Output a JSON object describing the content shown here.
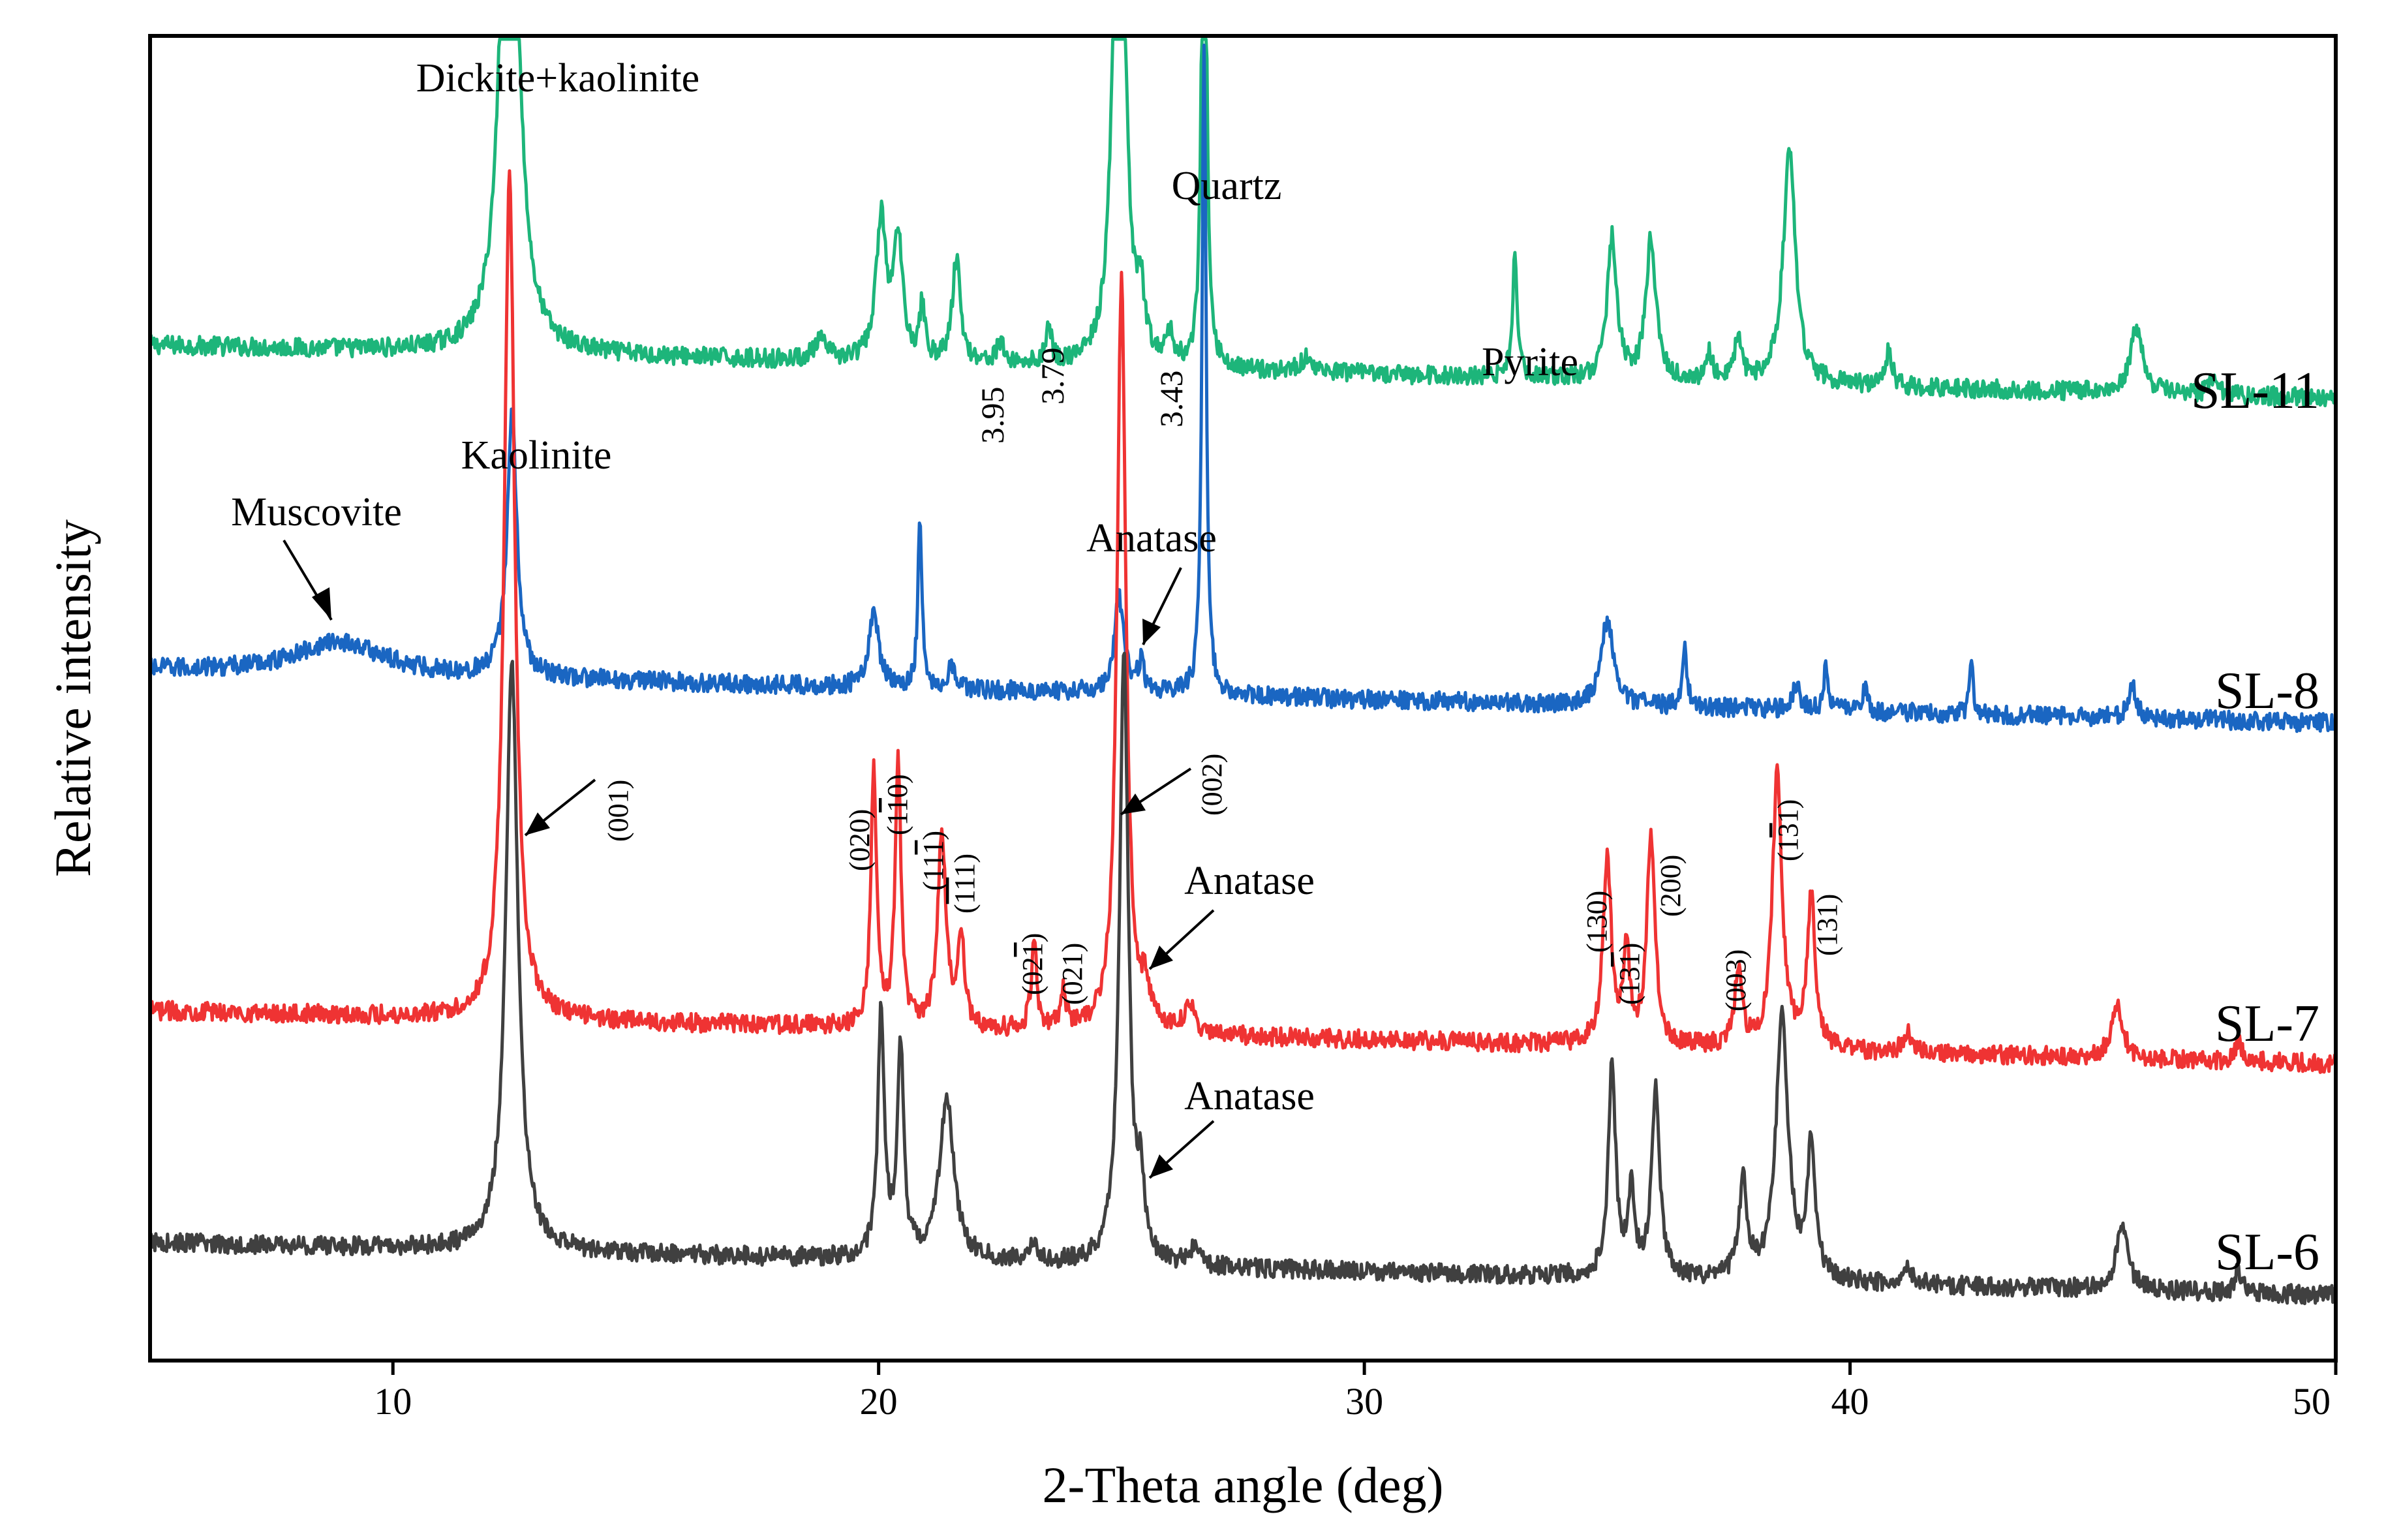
{
  "chart_data": {
    "type": "line",
    "xlabel": "2-Theta angle (deg)",
    "ylabel": "Relative intensity",
    "xlim": [
      5,
      50
    ],
    "x_ticks": [
      10,
      20,
      30,
      40,
      50
    ],
    "grid": false,
    "legend": "none",
    "series": [
      {
        "name": "SL-11",
        "color": "#1db57a",
        "baseline": 60,
        "noise": 2.0,
        "peaks": [
          {
            "x": 12.4,
            "h": 160,
            "w": 0.18
          },
          {
            "x": 18.8,
            "h": 4,
            "w": 0.15
          },
          {
            "x": 20.05,
            "h": 30,
            "w": 0.12
          },
          {
            "x": 20.4,
            "h": 25,
            "w": 0.12
          },
          {
            "x": 20.9,
            "h": 12,
            "w": 0.06
          },
          {
            "x": 21.6,
            "h": 22,
            "w": 0.1
          },
          {
            "x": 22.5,
            "h": 4,
            "w": 0.1
          },
          {
            "x": 23.5,
            "h": 9,
            "w": 0.06
          },
          {
            "x": 24.95,
            "h": 160,
            "w": 0.12
          },
          {
            "x": 25.4,
            "h": 12,
            "w": 0.08
          },
          {
            "x": 26.0,
            "h": 6,
            "w": 0.08
          },
          {
            "x": 26.7,
            "h": 155,
            "w": 0.05
          },
          {
            "x": 28.8,
            "h": 3,
            "w": 0.15
          },
          {
            "x": 33.1,
            "h": 26,
            "w": 0.06
          },
          {
            "x": 35.1,
            "h": 30,
            "w": 0.12
          },
          {
            "x": 35.9,
            "h": 30,
            "w": 0.12
          },
          {
            "x": 37.1,
            "h": 6,
            "w": 0.08
          },
          {
            "x": 37.7,
            "h": 10,
            "w": 0.08
          },
          {
            "x": 38.75,
            "h": 50,
            "w": 0.15
          },
          {
            "x": 40.8,
            "h": 8,
            "w": 0.08
          },
          {
            "x": 45.9,
            "h": 14,
            "w": 0.15
          },
          {
            "x": 47.5,
            "h": 4,
            "w": 0.1
          }
        ]
      },
      {
        "name": "SL-8",
        "color": "#1a66c2",
        "baseline": 40,
        "noise": 2.0,
        "peaks": [
          {
            "x": 8.9,
            "h": 7,
            "w": 1.1
          },
          {
            "x": 12.45,
            "h": 56,
            "w": 0.12
          },
          {
            "x": 19.9,
            "h": 16,
            "w": 0.12
          },
          {
            "x": 20.85,
            "h": 36,
            "w": 0.05
          },
          {
            "x": 21.5,
            "h": 5,
            "w": 0.1
          },
          {
            "x": 24.95,
            "h": 20,
            "w": 0.12
          },
          {
            "x": 25.4,
            "h": 6,
            "w": 0.08
          },
          {
            "x": 26.7,
            "h": 140,
            "w": 0.05
          },
          {
            "x": 35.0,
            "h": 18,
            "w": 0.15
          },
          {
            "x": 36.6,
            "h": 12,
            "w": 0.06
          },
          {
            "x": 38.9,
            "h": 5,
            "w": 0.1
          },
          {
            "x": 39.5,
            "h": 10,
            "w": 0.05
          },
          {
            "x": 40.3,
            "h": 5,
            "w": 0.06
          },
          {
            "x": 42.5,
            "h": 10,
            "w": 0.05
          },
          {
            "x": 45.8,
            "h": 7,
            "w": 0.1
          }
        ]
      },
      {
        "name": "SL-7",
        "color": "#ef3333",
        "baseline": 35,
        "noise": 2.0,
        "peaks": [
          {
            "x": 12.4,
            "h": 180,
            "w": 0.13
          },
          {
            "x": 19.9,
            "h": 55,
            "w": 0.07
          },
          {
            "x": 20.4,
            "h": 58,
            "w": 0.07
          },
          {
            "x": 21.3,
            "h": 42,
            "w": 0.1
          },
          {
            "x": 21.7,
            "h": 20,
            "w": 0.08
          },
          {
            "x": 23.2,
            "h": 18,
            "w": 0.07
          },
          {
            "x": 23.8,
            "h": 8,
            "w": 0.07
          },
          {
            "x": 25.0,
            "h": 160,
            "w": 0.11
          },
          {
            "x": 25.5,
            "h": 8,
            "w": 0.1
          },
          {
            "x": 26.4,
            "h": 6,
            "w": 0.12
          },
          {
            "x": 35.0,
            "h": 40,
            "w": 0.1
          },
          {
            "x": 35.4,
            "h": 21,
            "w": 0.07
          },
          {
            "x": 35.9,
            "h": 45,
            "w": 0.1
          },
          {
            "x": 37.7,
            "h": 16,
            "w": 0.09
          },
          {
            "x": 38.5,
            "h": 58,
            "w": 0.12
          },
          {
            "x": 39.2,
            "h": 32,
            "w": 0.1
          },
          {
            "x": 41.2,
            "h": 4,
            "w": 0.12
          },
          {
            "x": 45.5,
            "h": 11,
            "w": 0.14
          },
          {
            "x": 48.0,
            "h": 4,
            "w": 0.08
          }
        ]
      },
      {
        "name": "SL-6",
        "color": "#404040",
        "baseline": 5,
        "noise": 2.0,
        "peaks": [
          {
            "x": 12.45,
            "h": 125,
            "w": 0.15
          },
          {
            "x": 20.05,
            "h": 52,
            "w": 0.08
          },
          {
            "x": 20.45,
            "h": 45,
            "w": 0.08
          },
          {
            "x": 21.4,
            "h": 34,
            "w": 0.18
          },
          {
            "x": 23.2,
            "h": 4,
            "w": 0.1
          },
          {
            "x": 25.05,
            "h": 130,
            "w": 0.11
          },
          {
            "x": 25.4,
            "h": 15,
            "w": 0.08
          },
          {
            "x": 26.5,
            "h": 4,
            "w": 0.12
          },
          {
            "x": 35.1,
            "h": 45,
            "w": 0.09
          },
          {
            "x": 35.5,
            "h": 18,
            "w": 0.08
          },
          {
            "x": 36.0,
            "h": 40,
            "w": 0.1
          },
          {
            "x": 37.8,
            "h": 20,
            "w": 0.1
          },
          {
            "x": 38.6,
            "h": 56,
            "w": 0.15
          },
          {
            "x": 39.2,
            "h": 28,
            "w": 0.1
          },
          {
            "x": 41.2,
            "h": 3,
            "w": 0.12
          },
          {
            "x": 45.6,
            "h": 14,
            "w": 0.14
          },
          {
            "x": 48.0,
            "h": 5,
            "w": 0.08
          }
        ]
      }
    ],
    "peak_labels": {
      "dickite_kaolinite": "Dickite+kaolinite",
      "quartz": "Quartz",
      "pyrite": "Pyrite",
      "kaolinite": "Kaolinite",
      "muscovite": "Muscovite",
      "anatase_sl8": "Anatase",
      "anatase_sl7": "Anatase",
      "anatase_sl6": "Anatase"
    },
    "d_spacings": [
      "3.95",
      "3.79",
      "3.43"
    ],
    "miller_indices": {
      "h001": "(001)",
      "h020": "(020)",
      "h1m10_a": "(1",
      "h1m10_b": "1",
      "h1m10_c": "0)",
      "h11m1_a": "(11",
      "h11m1_b": "1",
      "h11m1_c": ")",
      "hm1m11_a": "(",
      "hm1m11_b": "11",
      "hm1m11_c": "1)",
      "h02m1_a": "(02",
      "h02m1_b": "1",
      "h02m1_c": ")",
      "h021": "(021)",
      "h002": "(002)",
      "h130": "(130)",
      "h13m1_a": "(13",
      "h13m1_b": "1",
      "h13m1_c": ")",
      "h200": "(200)",
      "h003": "(003)",
      "h1m31_a": "(1",
      "h1m31_b": "3",
      "h1m31_c": "1)",
      "h131": "(131)"
    }
  }
}
